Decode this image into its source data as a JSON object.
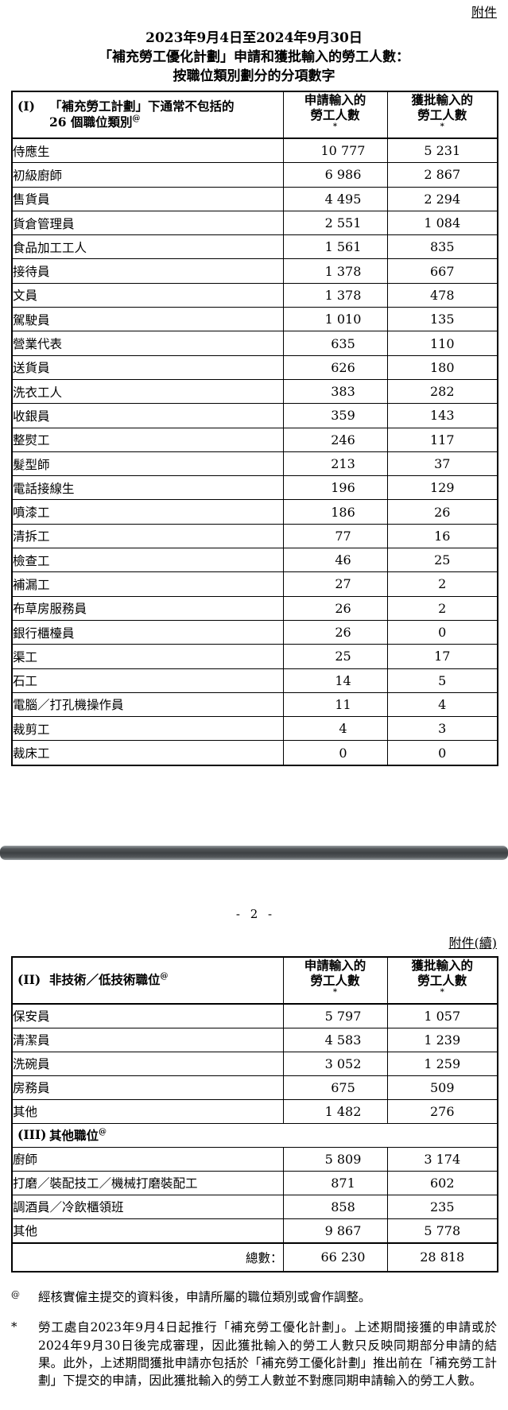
{
  "page1": {
    "annex_label": "附件",
    "title_lines": [
      "2023年9月4日至2024年9月30日",
      "「補充勞工優化計劃」申請和獲批輸入的勞工人數：",
      "按職位類別劃分的分項數字"
    ],
    "table1": {
      "section_id": "(I)",
      "section_title_line1": "「補充勞工計劃」下通常不包括的",
      "section_title_line2": "26 個職位類別",
      "section_title_sup": "@",
      "col_applied_line1": "申請輸入的",
      "col_applied_line2": "勞工人數",
      "col_approved_line1": "獲批輸入的",
      "col_approved_line2": "勞工人數",
      "col_sup": "*",
      "rows": [
        {
          "label": "侍應生",
          "applied": "10 777",
          "approved": "5 231"
        },
        {
          "label": "初級廚師",
          "applied": "6 986",
          "approved": "2 867"
        },
        {
          "label": "售貨員",
          "applied": "4 495",
          "approved": "2 294"
        },
        {
          "label": "貨倉管理員",
          "applied": "2 551",
          "approved": "1 084"
        },
        {
          "label": "食品加工工人",
          "applied": "1 561",
          "approved": "835"
        },
        {
          "label": "接待員",
          "applied": "1 378",
          "approved": "667"
        },
        {
          "label": "文員",
          "applied": "1 378",
          "approved": "478"
        },
        {
          "label": "駕駛員",
          "applied": "1 010",
          "approved": "135"
        },
        {
          "label": "營業代表",
          "applied": "635",
          "approved": "110"
        },
        {
          "label": "送貨員",
          "applied": "626",
          "approved": "180"
        },
        {
          "label": "洗衣工人",
          "applied": "383",
          "approved": "282"
        },
        {
          "label": "收銀員",
          "applied": "359",
          "approved": "143"
        },
        {
          "label": "整熨工",
          "applied": "246",
          "approved": "117"
        },
        {
          "label": "髮型師",
          "applied": "213",
          "approved": "37"
        },
        {
          "label": "電話接線生",
          "applied": "196",
          "approved": "129"
        },
        {
          "label": "噴漆工",
          "applied": "186",
          "approved": "26"
        },
        {
          "label": "清拆工",
          "applied": "77",
          "approved": "16"
        },
        {
          "label": "檢查工",
          "applied": "46",
          "approved": "25"
        },
        {
          "label": "補漏工",
          "applied": "27",
          "approved": "2"
        },
        {
          "label": "布草房服務員",
          "applied": "26",
          "approved": "2"
        },
        {
          "label": "銀行櫃檯員",
          "applied": "26",
          "approved": "0"
        },
        {
          "label": "渠工",
          "applied": "25",
          "approved": "17"
        },
        {
          "label": "石工",
          "applied": "14",
          "approved": "5"
        },
        {
          "label": "電腦／打孔機操作員",
          "applied": "11",
          "approved": "4"
        },
        {
          "label": "裁剪工",
          "applied": "4",
          "approved": "3"
        },
        {
          "label": "裁床工",
          "applied": "0",
          "approved": "0"
        }
      ]
    }
  },
  "page2": {
    "page_number": "- 2 -",
    "annex_label": "附件(續)",
    "table2": {
      "section_id": "(II)",
      "section_title": "非技術／低技術職位",
      "section_title_sup": "@",
      "col_applied_line1": "申請輸入的",
      "col_applied_line2": "勞工人數",
      "col_approved_line1": "獲批輸入的",
      "col_approved_line2": "勞工人數",
      "col_sup": "*",
      "rows": [
        {
          "label": "保安員",
          "applied": "5 797",
          "approved": "1 057"
        },
        {
          "label": "清潔員",
          "applied": "4 583",
          "approved": "1 239"
        },
        {
          "label": "洗碗員",
          "applied": "3 052",
          "approved": "1 259"
        },
        {
          "label": "房務員",
          "applied": "675",
          "approved": "509"
        },
        {
          "label": "其他",
          "applied": "1 482",
          "approved": "276"
        }
      ]
    },
    "table3": {
      "section_id": "(III)",
      "section_title": "其他職位",
      "section_title_sup": "@",
      "rows": [
        {
          "label": "廚師",
          "applied": "5 809",
          "approved": "3 174"
        },
        {
          "label": "打磨／裝配技工／機械打磨裝配工",
          "applied": "871",
          "approved": "602"
        },
        {
          "label": "調酒員／冷飲櫃領班",
          "applied": "858",
          "approved": "235"
        },
        {
          "label": "其他",
          "applied": "9 867",
          "approved": "5 778"
        }
      ]
    },
    "total": {
      "label": "總數：",
      "applied": "66 230",
      "approved": "28 818"
    }
  },
  "footnotes": {
    "at": {
      "marker": "@",
      "text": "經核實僱主提交的資料後，申請所屬的職位類別或會作調整。"
    },
    "star": {
      "marker": "*",
      "text": "勞工處自2023年9月4日起推行「補充勞工優化計劃」。上述期間接獲的申請或於2024年9月30日後完成審理，因此獲批輸入的勞工人數只反映同期部分申請的結果。此外，上述期間獲批申請亦包括於「補充勞工優化計劃」推出前在「補充勞工計劃」下提交的申請，因此獲批輸入的勞工人數並不對應同期申請輸入的勞工人數。"
    }
  }
}
